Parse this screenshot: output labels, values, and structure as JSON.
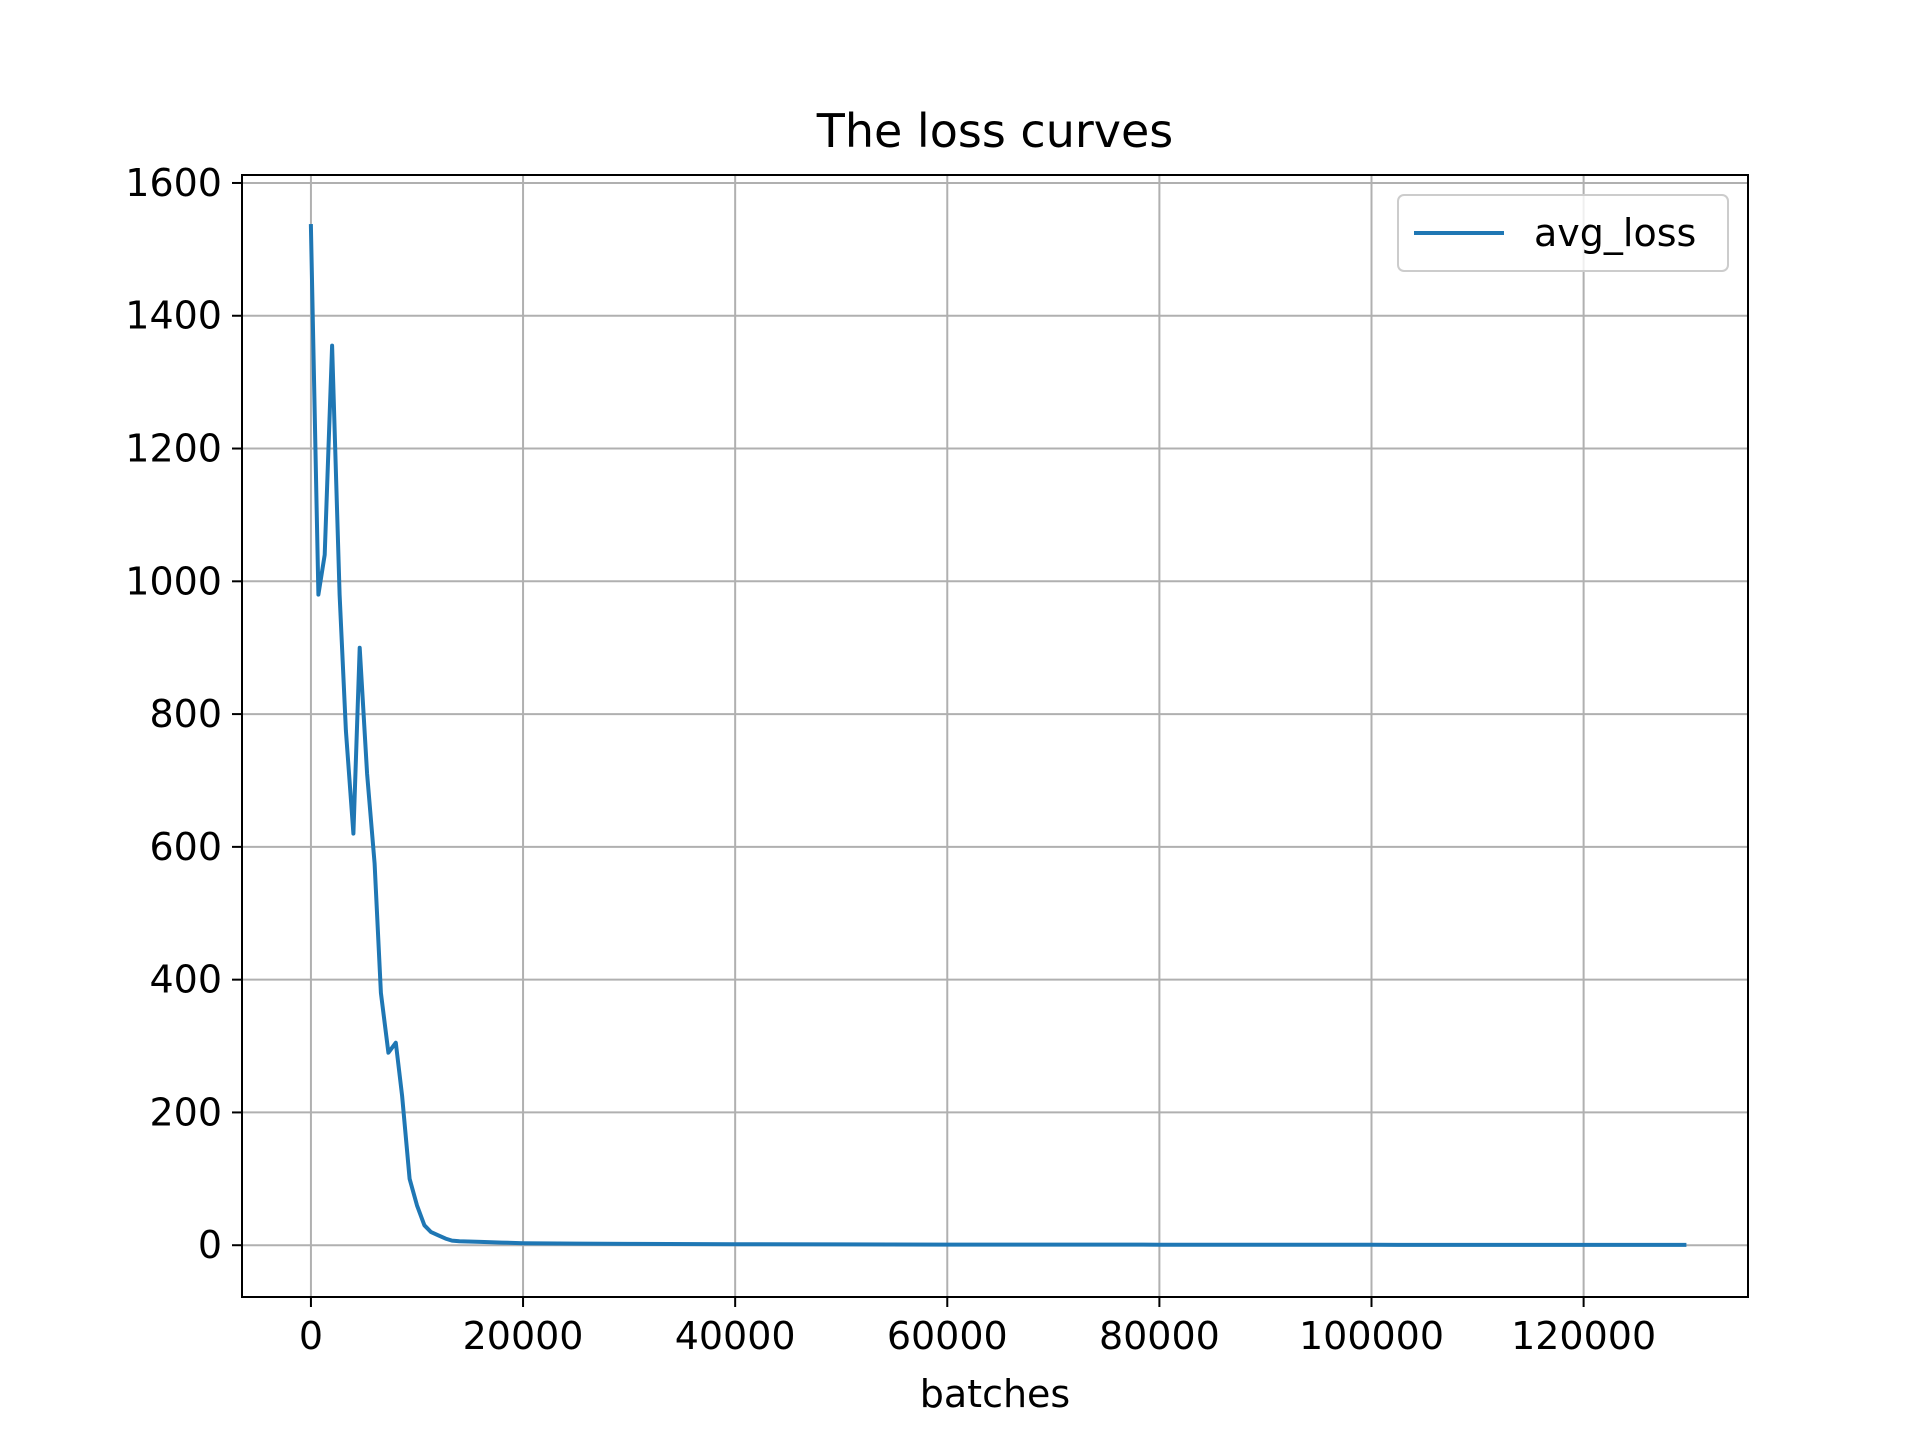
{
  "chart_data": {
    "type": "line",
    "title": "The loss curves",
    "xlabel": "batches",
    "ylabel": "",
    "xlim": [
      -6500,
      135500
    ],
    "ylim": [
      -78,
      1612
    ],
    "xticks": [
      0,
      20000,
      40000,
      60000,
      80000,
      100000,
      120000
    ],
    "yticks": [
      0,
      200,
      400,
      600,
      800,
      1000,
      1200,
      1400,
      1600
    ],
    "grid": true,
    "legend_position": "top-right",
    "colors": {
      "series": "#1f77b4",
      "grid": "#b0b0b0",
      "axes": "#000000"
    },
    "series": [
      {
        "name": "avg_loss",
        "x": [
          0,
          700,
          1300,
          2000,
          2700,
          3300,
          4000,
          4600,
          5300,
          6000,
          6600,
          7300,
          8000,
          8600,
          9300,
          10000,
          10700,
          11300,
          12000,
          12700,
          13300,
          14000,
          16000,
          18000,
          20000,
          25000,
          30000,
          40000,
          50000,
          60000,
          70000,
          80000,
          90000,
          100000,
          110000,
          120000,
          129500
        ],
        "y": [
          1535,
          980,
          1040,
          1355,
          980,
          775,
          620,
          900,
          710,
          575,
          380,
          290,
          305,
          225,
          100,
          60,
          30,
          20,
          15,
          10,
          7,
          6,
          5,
          4,
          3,
          2.5,
          2,
          1.5,
          1.2,
          1,
          0.9,
          0.8,
          0.7,
          0.6,
          0.5,
          0.5,
          0.5
        ]
      }
    ]
  }
}
